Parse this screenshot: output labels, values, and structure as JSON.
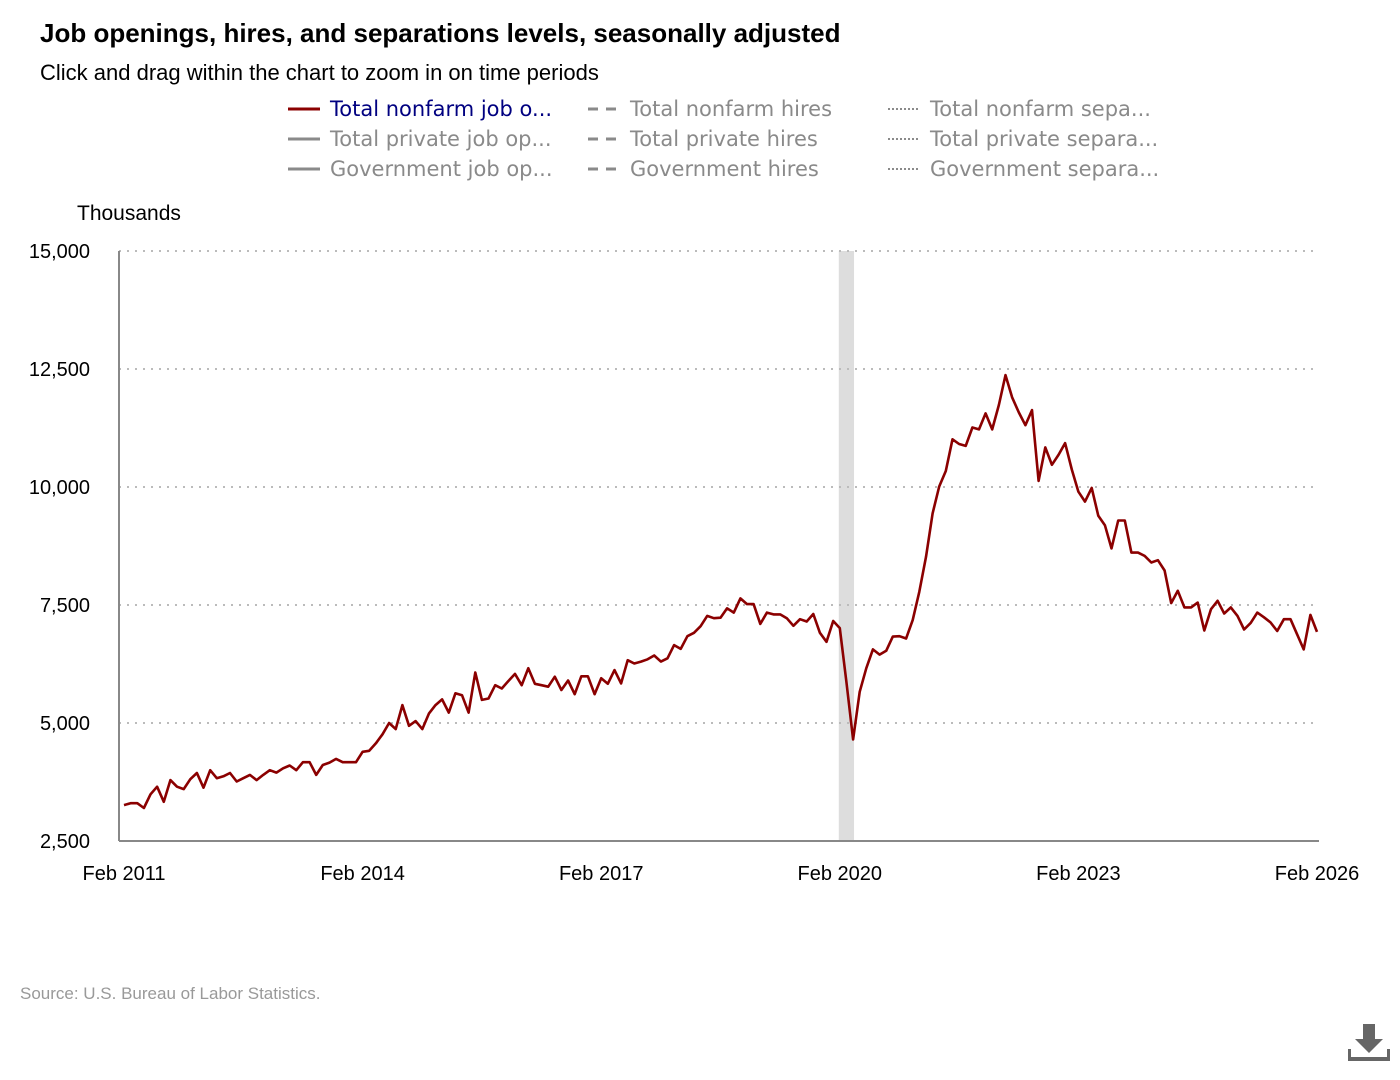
{
  "header": {
    "title": "Job openings, hires, and separations levels, seasonally adjusted",
    "subtitle": "Click and drag within the chart to zoom in on time periods"
  },
  "legend": [
    {
      "label": "Total nonfarm job o...",
      "style": "solid",
      "color": "#8b0000",
      "active": true
    },
    {
      "label": "Total nonfarm hires",
      "style": "dashed",
      "color": "#8a8a8a",
      "active": false
    },
    {
      "label": "Total nonfarm sepa...",
      "style": "dotted",
      "color": "#8a8a8a",
      "active": false
    },
    {
      "label": "Total private job op...",
      "style": "solid",
      "color": "#8a8a8a",
      "active": false
    },
    {
      "label": "Total private hires",
      "style": "dashed",
      "color": "#8a8a8a",
      "active": false
    },
    {
      "label": "Total private separa...",
      "style": "dotted",
      "color": "#8a8a8a",
      "active": false
    },
    {
      "label": "Government job op...",
      "style": "solid",
      "color": "#8a8a8a",
      "active": false
    },
    {
      "label": "Government hires",
      "style": "dashed",
      "color": "#8a8a8a",
      "active": false
    },
    {
      "label": "Government separa...",
      "style": "dotted",
      "color": "#8a8a8a",
      "active": false
    }
  ],
  "source": "Source: U.S. Bureau of Labor Statistics.",
  "download_icon": "download-icon",
  "chart_data": {
    "type": "line",
    "ylabel": "Thousands",
    "ylim": [
      2500,
      15000
    ],
    "yticks": [
      2500,
      5000,
      7500,
      10000,
      12500,
      15000
    ],
    "ytick_labels": [
      "2,500",
      "5,000",
      "7,500",
      "10,000",
      "12,500",
      "15,000"
    ],
    "xlim": [
      "2011-02",
      "2026-02"
    ],
    "xticks": [
      "2011-02",
      "2014-02",
      "2017-02",
      "2020-02",
      "2023-02",
      "2026-02"
    ],
    "xtick_labels": [
      "Feb 2011",
      "Feb 2014",
      "Feb 2017",
      "Feb 2020",
      "Feb 2023",
      "Feb 2026"
    ],
    "grid": "horizontal dotted",
    "legend_placement": "top",
    "shaded_period": [
      "2020-02",
      "2020-04"
    ],
    "shade_color": "#dddddd",
    "x": [
      "2011-02",
      "2011-03",
      "2011-04",
      "2011-05",
      "2011-06",
      "2011-07",
      "2011-08",
      "2011-09",
      "2011-10",
      "2011-11",
      "2011-12",
      "2012-01",
      "2012-02",
      "2012-03",
      "2012-04",
      "2012-05",
      "2012-06",
      "2012-07",
      "2012-08",
      "2012-09",
      "2012-10",
      "2012-11",
      "2012-12",
      "2013-01",
      "2013-02",
      "2013-03",
      "2013-04",
      "2013-05",
      "2013-06",
      "2013-07",
      "2013-08",
      "2013-09",
      "2013-10",
      "2013-11",
      "2013-12",
      "2014-01",
      "2014-02",
      "2014-03",
      "2014-04",
      "2014-05",
      "2014-06",
      "2014-07",
      "2014-08",
      "2014-09",
      "2014-10",
      "2014-11",
      "2014-12",
      "2015-01",
      "2015-02",
      "2015-03",
      "2015-04",
      "2015-05",
      "2015-06",
      "2015-07",
      "2015-08",
      "2015-09",
      "2015-10",
      "2015-11",
      "2015-12",
      "2016-01",
      "2016-02",
      "2016-03",
      "2016-04",
      "2016-05",
      "2016-06",
      "2016-07",
      "2016-08",
      "2016-09",
      "2016-10",
      "2016-11",
      "2016-12",
      "2017-01",
      "2017-02",
      "2017-03",
      "2017-04",
      "2017-05",
      "2017-06",
      "2017-07",
      "2017-08",
      "2017-09",
      "2017-10",
      "2017-11",
      "2017-12",
      "2018-01",
      "2018-02",
      "2018-03",
      "2018-04",
      "2018-05",
      "2018-06",
      "2018-07",
      "2018-08",
      "2018-09",
      "2018-10",
      "2018-11",
      "2018-12",
      "2019-01",
      "2019-02",
      "2019-03",
      "2019-04",
      "2019-05",
      "2019-06",
      "2019-07",
      "2019-08",
      "2019-09",
      "2019-10",
      "2019-11",
      "2019-12",
      "2020-01",
      "2020-02",
      "2020-03",
      "2020-04",
      "2020-05",
      "2020-06",
      "2020-07",
      "2020-08",
      "2020-09",
      "2020-10",
      "2020-11",
      "2020-12",
      "2021-01",
      "2021-02",
      "2021-03",
      "2021-04",
      "2021-05",
      "2021-06",
      "2021-07",
      "2021-08",
      "2021-09",
      "2021-10",
      "2021-11",
      "2021-12",
      "2022-01",
      "2022-02",
      "2022-03",
      "2022-04",
      "2022-05",
      "2022-06",
      "2022-07",
      "2022-08",
      "2022-09",
      "2022-10",
      "2022-11",
      "2022-12",
      "2023-01",
      "2023-02",
      "2023-03",
      "2023-04",
      "2023-05",
      "2023-06",
      "2023-07",
      "2023-08",
      "2023-09",
      "2023-10",
      "2023-11",
      "2023-12",
      "2024-01",
      "2024-02",
      "2024-03",
      "2024-04",
      "2024-05",
      "2024-06",
      "2024-07",
      "2024-08",
      "2024-09",
      "2024-10",
      "2024-11",
      "2024-12",
      "2025-01",
      "2025-02",
      "2025-03",
      "2025-04",
      "2025-05",
      "2025-06",
      "2025-07",
      "2025-08",
      "2025-09",
      "2025-10",
      "2025-11",
      "2025-12",
      "2026-01",
      "2026-02"
    ],
    "series": [
      {
        "name": "Total nonfarm job openings",
        "color": "#8b0000",
        "values": [
          3260,
          3300,
          3300,
          3200,
          3490,
          3650,
          3330,
          3790,
          3650,
          3600,
          3810,
          3940,
          3630,
          4000,
          3830,
          3870,
          3940,
          3760,
          3830,
          3900,
          3790,
          3900,
          4000,
          3950,
          4040,
          4100,
          4000,
          4170,
          4170,
          3900,
          4110,
          4160,
          4240,
          4170,
          4170,
          4170,
          4390,
          4410,
          4570,
          4760,
          5000,
          4870,
          5380,
          4940,
          5040,
          4870,
          5200,
          5380,
          5500,
          5220,
          5630,
          5590,
          5220,
          6070,
          5490,
          5520,
          5800,
          5730,
          5890,
          6040,
          5800,
          6160,
          5830,
          5800,
          5770,
          5980,
          5700,
          5900,
          5610,
          5990,
          5990,
          5610,
          5950,
          5830,
          6120,
          5840,
          6330,
          6260,
          6300,
          6350,
          6430,
          6300,
          6370,
          6650,
          6570,
          6840,
          6910,
          7050,
          7270,
          7220,
          7230,
          7430,
          7340,
          7640,
          7520,
          7520,
          7100,
          7340,
          7300,
          7300,
          7220,
          7060,
          7200,
          7150,
          7310,
          6910,
          6720,
          7160,
          7010,
          5870,
          4650,
          5660,
          6160,
          6560,
          6450,
          6530,
          6830,
          6840,
          6790,
          7180,
          7780,
          8520,
          9440,
          10010,
          10340,
          11010,
          10910,
          10870,
          11260,
          11220,
          11560,
          11220,
          11740,
          12370,
          11900,
          11580,
          11310,
          11630,
          10130,
          10840,
          10470,
          10680,
          10930,
          10370,
          9900,
          9690,
          9980,
          9390,
          9190,
          8700,
          9290,
          9290,
          8610,
          8610,
          8540,
          8400,
          8450,
          8230,
          7540,
          7800,
          7450,
          7450,
          7550,
          6960,
          7410,
          7590,
          7320,
          7450,
          7270,
          6980,
          7120,
          7340,
          7240,
          7130,
          6950,
          7200,
          7200,
          6880,
          6560,
          7290,
          6930
        ]
      }
    ]
  }
}
